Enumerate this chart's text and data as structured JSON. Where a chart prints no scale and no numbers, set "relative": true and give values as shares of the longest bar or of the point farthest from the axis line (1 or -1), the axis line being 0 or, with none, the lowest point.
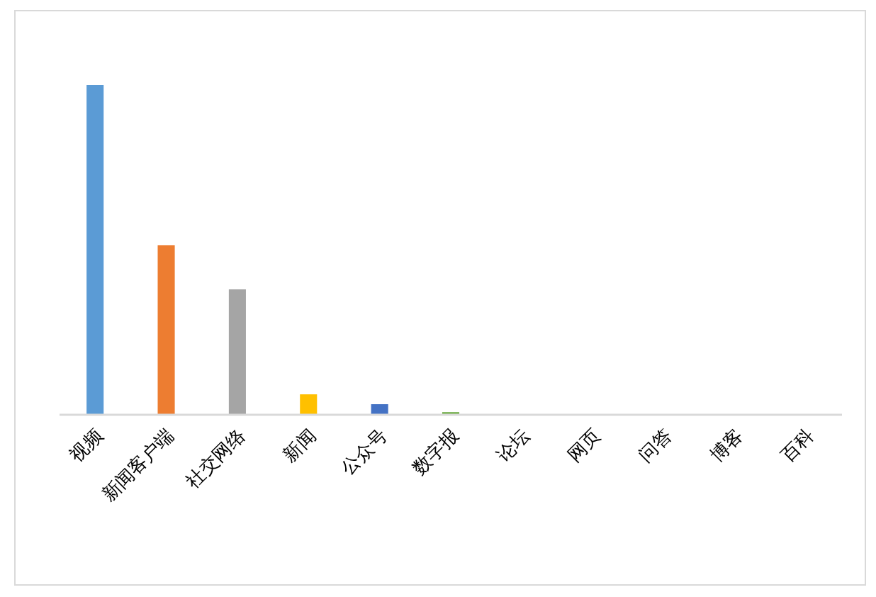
{
  "chart_data": {
    "type": "bar",
    "relative": true,
    "categories": [
      "视频",
      "新闻客户端",
      "社交网络",
      "新闻",
      "公众号",
      "数字报",
      "论坛",
      "网页",
      "问答",
      "博客",
      "百科"
    ],
    "values": [
      1,
      0.513,
      0.379,
      0.06,
      0.03,
      0.006,
      0,
      0,
      0,
      0,
      0
    ],
    "colors": [
      "#5b9bd5",
      "#ed7d31",
      "#a5a5a5",
      "#ffc000",
      "#4472c4",
      "#70ad47",
      "#255e91",
      "#9e480e",
      "#636363",
      "#997300",
      "#264478"
    ]
  }
}
